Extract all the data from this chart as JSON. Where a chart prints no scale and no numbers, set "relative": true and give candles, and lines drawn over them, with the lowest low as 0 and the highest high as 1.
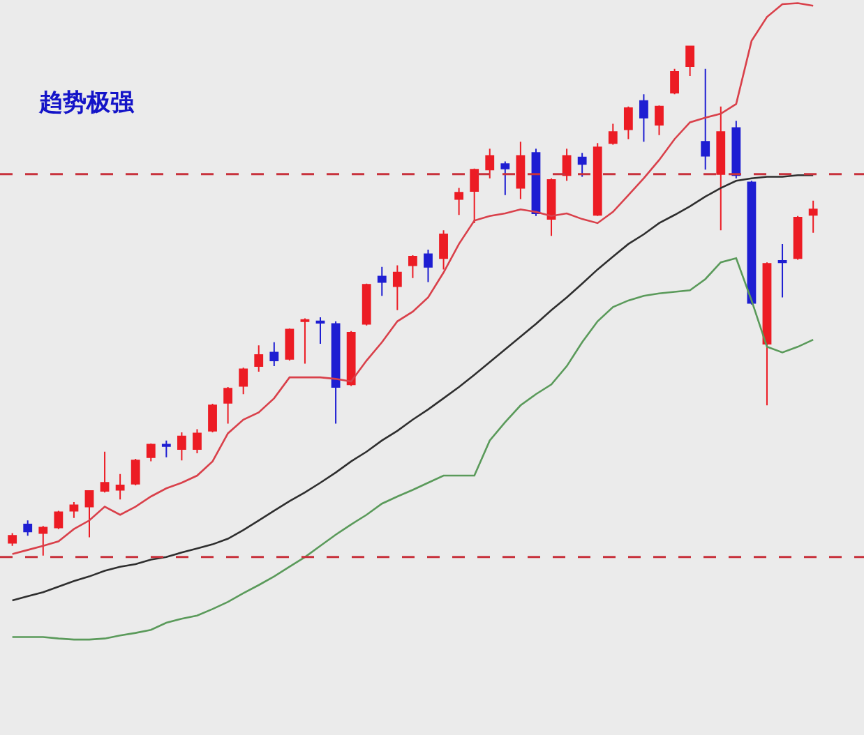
{
  "chart_data": {
    "type": "candlestick",
    "relative": true,
    "annotations": [
      "趋势极强"
    ],
    "categories": [
      null,
      null,
      null,
      null,
      null,
      null,
      null,
      null,
      null,
      null,
      null,
      null,
      null,
      null,
      null,
      null,
      null,
      null,
      null,
      null,
      null,
      null,
      null,
      null,
      null,
      null,
      null,
      null,
      null,
      null,
      null,
      null,
      null,
      null,
      null,
      null,
      null,
      null,
      null,
      null,
      null,
      null,
      null,
      null,
      null,
      null,
      null,
      null,
      null,
      null,
      null,
      null,
      null
    ],
    "colors": [
      "#ec1c24",
      "#1e1ed2",
      "#ec1c24",
      "#ec1c24",
      "#ec1c24",
      "#ec1c24",
      "#ec1c24",
      "#ec1c24",
      "#ec1c24",
      "#ec1c24",
      "#1e1ed2",
      "#ec1c24",
      "#ec1c24",
      "#ec1c24",
      "#ec1c24",
      "#ec1c24",
      "#ec1c24",
      "#1e1ed2",
      "#ec1c24",
      "#ec1c24",
      "#1e1ed2",
      "#1e1ed2",
      "#ec1c24",
      "#ec1c24",
      "#1e1ed2",
      "#ec1c24",
      "#ec1c24",
      "#1e1ed2",
      "#ec1c24",
      "#ec1c24",
      "#ec1c24",
      "#ec1c24",
      "#1e1ed2",
      "#ec1c24",
      "#1e1ed2",
      "#ec1c24",
      "#ec1c24",
      "#1e1ed2",
      "#ec1c24",
      "#ec1c24",
      "#ec1c24",
      "#1e1ed2",
      "#ec1c24",
      "#ec1c24",
      "#ec1c24",
      "#1e1ed2",
      "#ec1c24",
      "#1e1ed2",
      "#1e1ed2",
      "#ec1c24",
      "#1e1ed2",
      "#ec1c24",
      "#ec1c24"
    ],
    "ohlc": [
      [
        0.025,
        0.044,
        0.019,
        0.039
      ],
      [
        0.061,
        0.069,
        0.039,
        0.047
      ],
      [
        0.044,
        0.058,
        0,
        0.055
      ],
      [
        0.055,
        0.088,
        0.052,
        0.085
      ],
      [
        0.088,
        0.105,
        0.074,
        0.099
      ],
      [
        0.096,
        0.127,
        0.036,
        0.127
      ],
      [
        0.127,
        0.204,
        0.124,
        0.143
      ],
      [
        0.129,
        0.16,
        0.11,
        0.138
      ],
      [
        0.141,
        0.19,
        0.138,
        0.187
      ],
      [
        0.193,
        0.22,
        0.185,
        0.218
      ],
      [
        0.218,
        0.226,
        0.193,
        0.215
      ],
      [
        0.209,
        0.242,
        0.187,
        0.234
      ],
      [
        0.209,
        0.248,
        0.201,
        0.24
      ],
      [
        0.245,
        0.298,
        0.242,
        0.295
      ],
      [
        0.3,
        0.331,
        0.259,
        0.328
      ],
      [
        0.333,
        0.369,
        0.317,
        0.366
      ],
      [
        0.372,
        0.413,
        0.361,
        0.394
      ],
      [
        0.399,
        0.419,
        0.372,
        0.383
      ],
      [
        0.386,
        0.446,
        0.383,
        0.444
      ],
      [
        0.46,
        0.466,
        0.377,
        0.463
      ],
      [
        0.46,
        0.468,
        0.416,
        0.457
      ],
      [
        0.455,
        0.46,
        0.259,
        0.331
      ],
      [
        0.336,
        0.441,
        0.333,
        0.438
      ],
      [
        0.455,
        0.534,
        0.452,
        0.532
      ],
      [
        0.548,
        0.567,
        0.51,
        0.537
      ],
      [
        0.529,
        0.57,
        0.482,
        0.556
      ],
      [
        0.57,
        0.59,
        0.545,
        0.587
      ],
      [
        0.592,
        0.601,
        0.537,
        0.567
      ],
      [
        0.584,
        0.639,
        0.562,
        0.631
      ],
      [
        0.7,
        0.722,
        0.669,
        0.713
      ],
      [
        0.716,
        0.76,
        0.653,
        0.758
      ],
      [
        0.758,
        0.799,
        0.741,
        0.785
      ],
      [
        0.769,
        0.774,
        0.708,
        0.76
      ],
      [
        0.722,
        0.813,
        0.7,
        0.785
      ],
      [
        0.791,
        0.799,
        0.667,
        0.672
      ],
      [
        0.661,
        0.741,
        0.628,
        0.738
      ],
      [
        0.747,
        0.799,
        0.736,
        0.785
      ],
      [
        0.782,
        0.791,
        0.744,
        0.769
      ],
      [
        0.669,
        0.81,
        0.667,
        0.802
      ],
      [
        0.81,
        0.848,
        0.807,
        0.832
      ],
      [
        0.837,
        0.882,
        0.818,
        0.879
      ],
      [
        0.893,
        0.906,
        0.813,
        0.86
      ],
      [
        0.846,
        0.884,
        0.826,
        0.882
      ],
      [
        0.909,
        0.956,
        0.906,
        0.95
      ],
      [
        0.961,
        1,
        0.942,
        1
      ],
      [
        0.813,
        0.956,
        0.758,
        0.785
      ],
      [
        0.749,
        0.882,
        0.639,
        0.832
      ],
      [
        0.84,
        0.854,
        0.741,
        0.747
      ],
      [
        0.733,
        0.736,
        0.493,
        0.496
      ],
      [
        0.416,
        0.576,
        0.295,
        0.573
      ],
      [
        0.579,
        0.612,
        0.507,
        0.576
      ],
      [
        0.584,
        0.667,
        0.581,
        0.664
      ],
      [
        0.669,
        0.697,
        0.634,
        0.68
      ]
    ],
    "series": [
      {
        "type": "line",
        "color": "#d9404a",
        "values": [
          0.003,
          0.011,
          0.019,
          0.028,
          0.052,
          0.069,
          0.096,
          0.08,
          0.096,
          0.116,
          0.132,
          0.143,
          0.157,
          0.185,
          0.24,
          0.267,
          0.281,
          0.309,
          0.35,
          0.35,
          0.35,
          0.347,
          0.342,
          0.383,
          0.419,
          0.46,
          0.479,
          0.507,
          0.556,
          0.612,
          0.658,
          0.667,
          0.672,
          0.68,
          0.675,
          0.667,
          0.672,
          0.661,
          0.653,
          0.675,
          0.708,
          0.741,
          0.777,
          0.818,
          0.851,
          0.86,
          0.868,
          0.887,
          1.011,
          1.058,
          1.083,
          1.085,
          1.08
        ]
      },
      {
        "type": "line",
        "color": "#2e2e2e",
        "values": [
          -0.088,
          -0.08,
          -0.072,
          -0.061,
          -0.05,
          -0.041,
          -0.03,
          -0.022,
          -0.017,
          -0.008,
          -0.003,
          0.006,
          0.014,
          0.022,
          0.033,
          0.05,
          0.069,
          0.088,
          0.107,
          0.124,
          0.143,
          0.163,
          0.185,
          0.204,
          0.226,
          0.245,
          0.267,
          0.287,
          0.309,
          0.331,
          0.355,
          0.38,
          0.405,
          0.43,
          0.455,
          0.482,
          0.507,
          0.534,
          0.562,
          0.587,
          0.612,
          0.631,
          0.653,
          0.669,
          0.686,
          0.705,
          0.722,
          0.736,
          0.741,
          0.744,
          0.744,
          0.747,
          0.747
        ]
      },
      {
        "type": "line",
        "color": "#5a9a5a",
        "values": [
          -0.16,
          -0.16,
          -0.16,
          -0.163,
          -0.165,
          -0.165,
          -0.163,
          -0.157,
          -0.152,
          -0.146,
          -0.132,
          -0.124,
          -0.118,
          -0.105,
          -0.091,
          -0.074,
          -0.058,
          -0.041,
          -0.022,
          -0.003,
          0.019,
          0.041,
          0.061,
          0.08,
          0.102,
          0.116,
          0.129,
          0.143,
          0.157,
          0.157,
          0.157,
          0.226,
          0.262,
          0.295,
          0.317,
          0.336,
          0.372,
          0.419,
          0.46,
          0.488,
          0.501,
          0.51,
          0.515,
          0.518,
          0.521,
          0.543,
          0.576,
          0.584,
          0.501,
          0.41,
          0.399,
          0.41,
          0.424
        ]
      }
    ],
    "ref_lines": [
      {
        "axis": "y",
        "value": 0.749,
        "color": "#c8323c",
        "line_style": "dashed"
      },
      {
        "axis": "y",
        "value": -0.003,
        "color": "#c8323c",
        "line_style": "dashed"
      }
    ]
  }
}
